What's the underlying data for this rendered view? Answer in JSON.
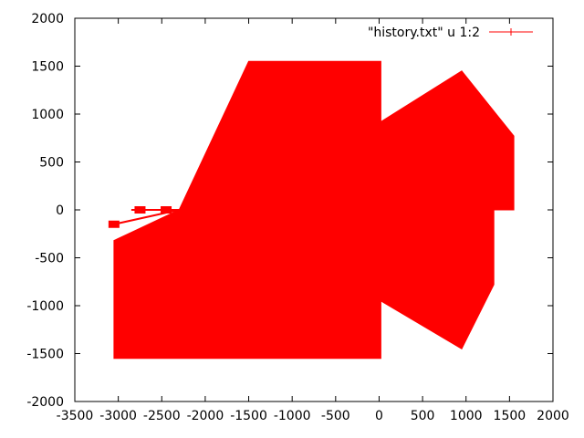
{
  "chart_data": {
    "type": "line",
    "title": "",
    "xlabel": "",
    "ylabel": "",
    "xlim": [
      -3500,
      2000
    ],
    "ylim": [
      -2000,
      2000
    ],
    "x_ticks": [
      -3500,
      -3000,
      -2500,
      -2000,
      -1500,
      -1000,
      -500,
      0,
      500,
      1000,
      1500,
      2000
    ],
    "y_ticks": [
      -2000,
      -1500,
      -1000,
      -500,
      0,
      500,
      1000,
      1500,
      2000
    ],
    "grid": false,
    "legend_position": "top-right",
    "series": [
      {
        "name": "\"history.txt\" u 1:2",
        "color": "#ff0000",
        "marker": "plus",
        "filled_regions": [
          [
            [
              -1500,
              1550
            ],
            [
              20,
              1550
            ],
            [
              20,
              -1550
            ],
            [
              -3050,
              -1550
            ],
            [
              -3050,
              -320
            ],
            [
              -2300,
              0
            ]
          ],
          [
            [
              20,
              920
            ],
            [
              950,
              1450
            ],
            [
              1550,
              770
            ],
            [
              1550,
              0
            ],
            [
              1320,
              0
            ],
            [
              1320,
              -780
            ],
            [
              950,
              -1450
            ],
            [
              20,
              -950
            ]
          ]
        ],
        "path": [
          [
            -2300,
            0
          ],
          [
            -2850,
            0
          ],
          [
            -2300,
            0
          ],
          [
            -3050,
            -150
          ],
          [
            -2300,
            0
          ],
          [
            -2600,
            0
          ]
        ]
      }
    ]
  }
}
